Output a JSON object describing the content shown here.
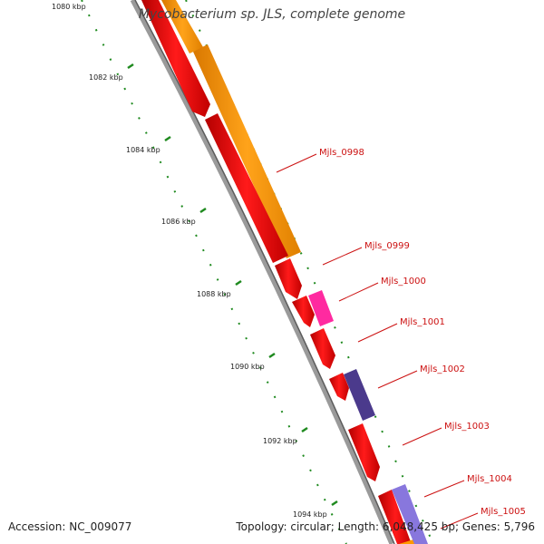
{
  "title": "Mycobacterium sp. JLS, complete genome",
  "accession": "Accession: NC_009077",
  "summary": "Topology: circular; Length: 6,048,425 bp; Genes: 5,796",
  "colors": {
    "backbone": "#8a8a8a",
    "tick": "#1f8a1f",
    "gene_label": "#cc1111",
    "forward_red": "#ff0000",
    "orange": "#ff9900",
    "magenta": "#ff2aa0",
    "dark_purple": "#4b3a8c",
    "light_purple": "#8877dd"
  },
  "ruler": {
    "labels": [
      "1080 kbp",
      "1082 kbp",
      "1084 kbp",
      "1086 kbp",
      "1088 kbp",
      "1090 kbp",
      "1092 kbp",
      "1094 kbp"
    ]
  },
  "genes": [
    {
      "name": "Mjls_0998",
      "color": "orange"
    },
    {
      "name": "Mjls_0999",
      "color": "forward_red"
    },
    {
      "name": "Mjls_1000",
      "color": "magenta"
    },
    {
      "name": "Mjls_1001",
      "color": "forward_red"
    },
    {
      "name": "Mjls_1002",
      "color": "dark_purple"
    },
    {
      "name": "Mjls_1003",
      "color": "forward_red"
    },
    {
      "name": "Mjls_1004",
      "color": "light_purple"
    },
    {
      "name": "Mjls_1005",
      "color": "forward_red"
    }
  ]
}
